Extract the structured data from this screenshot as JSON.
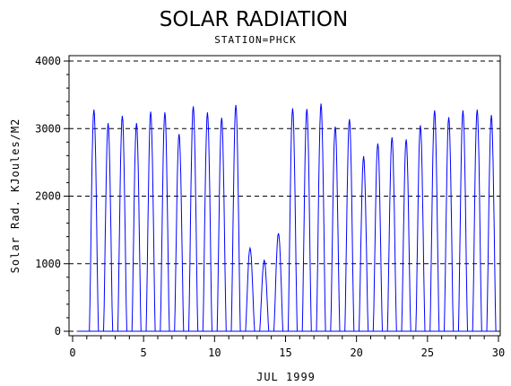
{
  "chart_data": {
    "type": "line",
    "title": "SOLAR RADIATION",
    "subtitle": "STATION=PHCK",
    "xlabel": "JUL 1999",
    "ylabel": "Solar Rad. KJoules/M2",
    "xlim": [
      0,
      30
    ],
    "ylim": [
      0,
      4000
    ],
    "x_ticks": [
      "0",
      "5",
      "10",
      "15",
      "20",
      "25",
      "30"
    ],
    "y_ticks": [
      "0",
      "1000",
      "2000",
      "3000",
      "4000"
    ],
    "grid": "horizontal dashed at 1000, 2000, 3000, 4000",
    "series_color": "#0000ff",
    "daily_peaks": [
      {
        "day": 1,
        "peak": 3280
      },
      {
        "day": 2,
        "peak": 3080
      },
      {
        "day": 3,
        "peak": 3190
      },
      {
        "day": 4,
        "peak": 3080
      },
      {
        "day": 5,
        "peak": 3250
      },
      {
        "day": 6,
        "peak": 3240
      },
      {
        "day": 7,
        "peak": 2920
      },
      {
        "day": 8,
        "peak": 3330
      },
      {
        "day": 9,
        "peak": 3240
      },
      {
        "day": 10,
        "peak": 3160
      },
      {
        "day": 11,
        "peak": 3350
      },
      {
        "day": 12,
        "peak": 1230
      },
      {
        "day": 13,
        "peak": 1050
      },
      {
        "day": 14,
        "peak": 1450
      },
      {
        "day": 15,
        "peak": 3300
      },
      {
        "day": 16,
        "peak": 3290
      },
      {
        "day": 17,
        "peak": 3370
      },
      {
        "day": 18,
        "peak": 3030
      },
      {
        "day": 19,
        "peak": 3140
      },
      {
        "day": 20,
        "peak": 2590
      },
      {
        "day": 21,
        "peak": 2780
      },
      {
        "day": 22,
        "peak": 2870
      },
      {
        "day": 23,
        "peak": 2840
      },
      {
        "day": 24,
        "peak": 3050
      },
      {
        "day": 25,
        "peak": 3270
      },
      {
        "day": 26,
        "peak": 3170
      },
      {
        "day": 27,
        "peak": 3270
      },
      {
        "day": 28,
        "peak": 3280
      },
      {
        "day": 29,
        "peak": 3200
      }
    ]
  }
}
